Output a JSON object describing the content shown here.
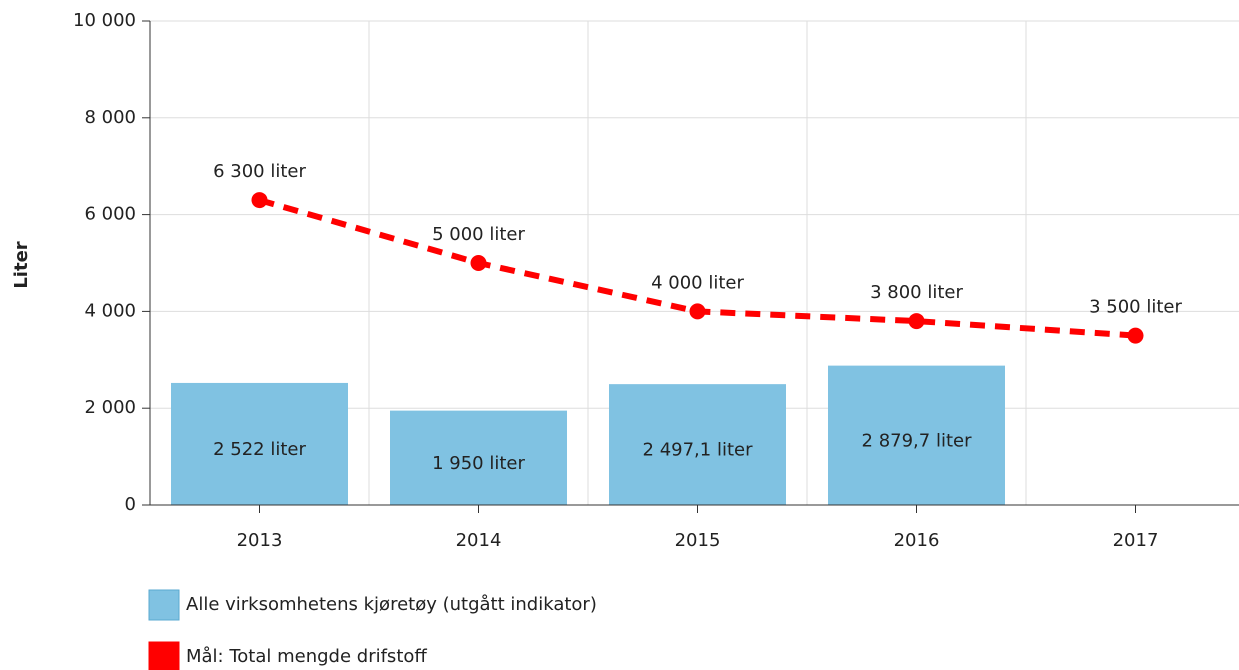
{
  "chart_data": {
    "type": "bar",
    "y_label": "Liter",
    "categories": [
      "2013",
      "2014",
      "2015",
      "2016",
      "2017"
    ],
    "ylim": [
      0,
      10000
    ],
    "yticks": [
      0,
      {
        "value": 2000,
        "label": "2 000"
      },
      {
        "value": 4000,
        "label": "4 000"
      },
      {
        "value": 6000,
        "label": "6 000"
      },
      {
        "value": 8000,
        "label": "8 000"
      },
      {
        "value": 10000,
        "label": "10 000"
      }
    ],
    "grid": true,
    "series": [
      {
        "name": "Alle virksomhetens kjøretøy (utgått indikator)",
        "type": "bar",
        "color": "#80c2e2",
        "values": [
          2522,
          1950,
          2497.1,
          2879.7,
          null
        ],
        "value_labels": [
          "2 522 liter",
          "1 950 liter",
          "2 497,1 liter",
          "2 879,7 liter",
          null
        ]
      },
      {
        "name": "Mål: Total mengde drifstoff",
        "type": "line",
        "color": "#ff0000",
        "values": [
          6300,
          5000,
          4000,
          3800,
          3500
        ],
        "value_labels": [
          "6 300 liter",
          "5 000 liter",
          "4 000 liter",
          "3 800 liter",
          "3 500 liter"
        ]
      }
    ]
  }
}
